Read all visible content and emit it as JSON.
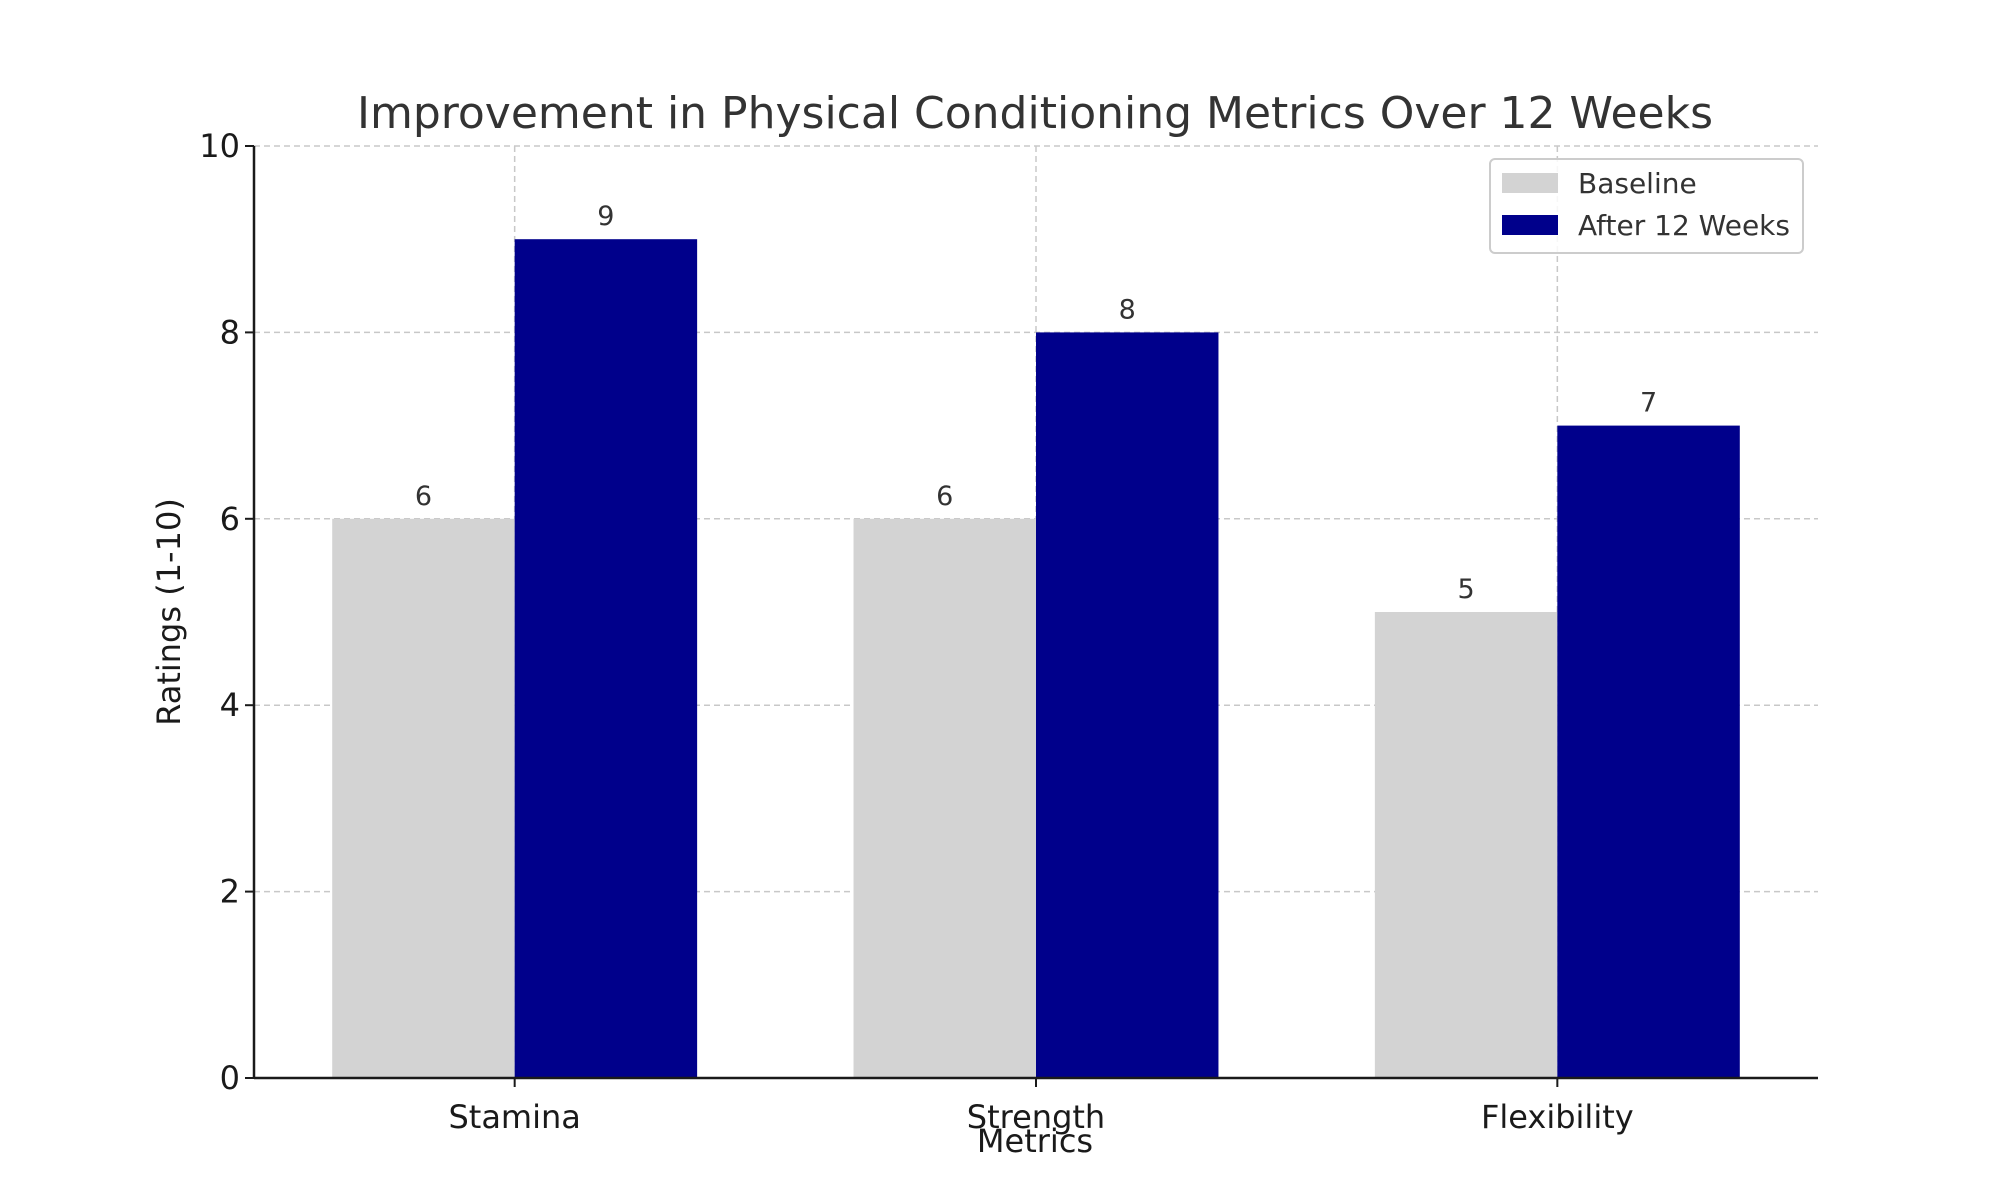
{
  "chart_data": {
    "type": "bar",
    "title": "Improvement in Physical Conditioning Metrics Over 12 Weeks",
    "xlabel": "Metrics",
    "ylabel": "Ratings (1-10)",
    "categories": [
      "Stamina",
      "Strength",
      "Flexibility"
    ],
    "series": [
      {
        "name": "Baseline",
        "values": [
          6,
          6,
          5
        ],
        "color": "#d3d3d3"
      },
      {
        "name": "After 12 Weeks",
        "values": [
          9,
          8,
          7
        ],
        "color": "#00008b"
      }
    ],
    "ylim": [
      0,
      10
    ],
    "yticks": [
      "0",
      "2",
      "4",
      "6",
      "8",
      "10"
    ],
    "grid": true,
    "legend_position": "top-right"
  }
}
